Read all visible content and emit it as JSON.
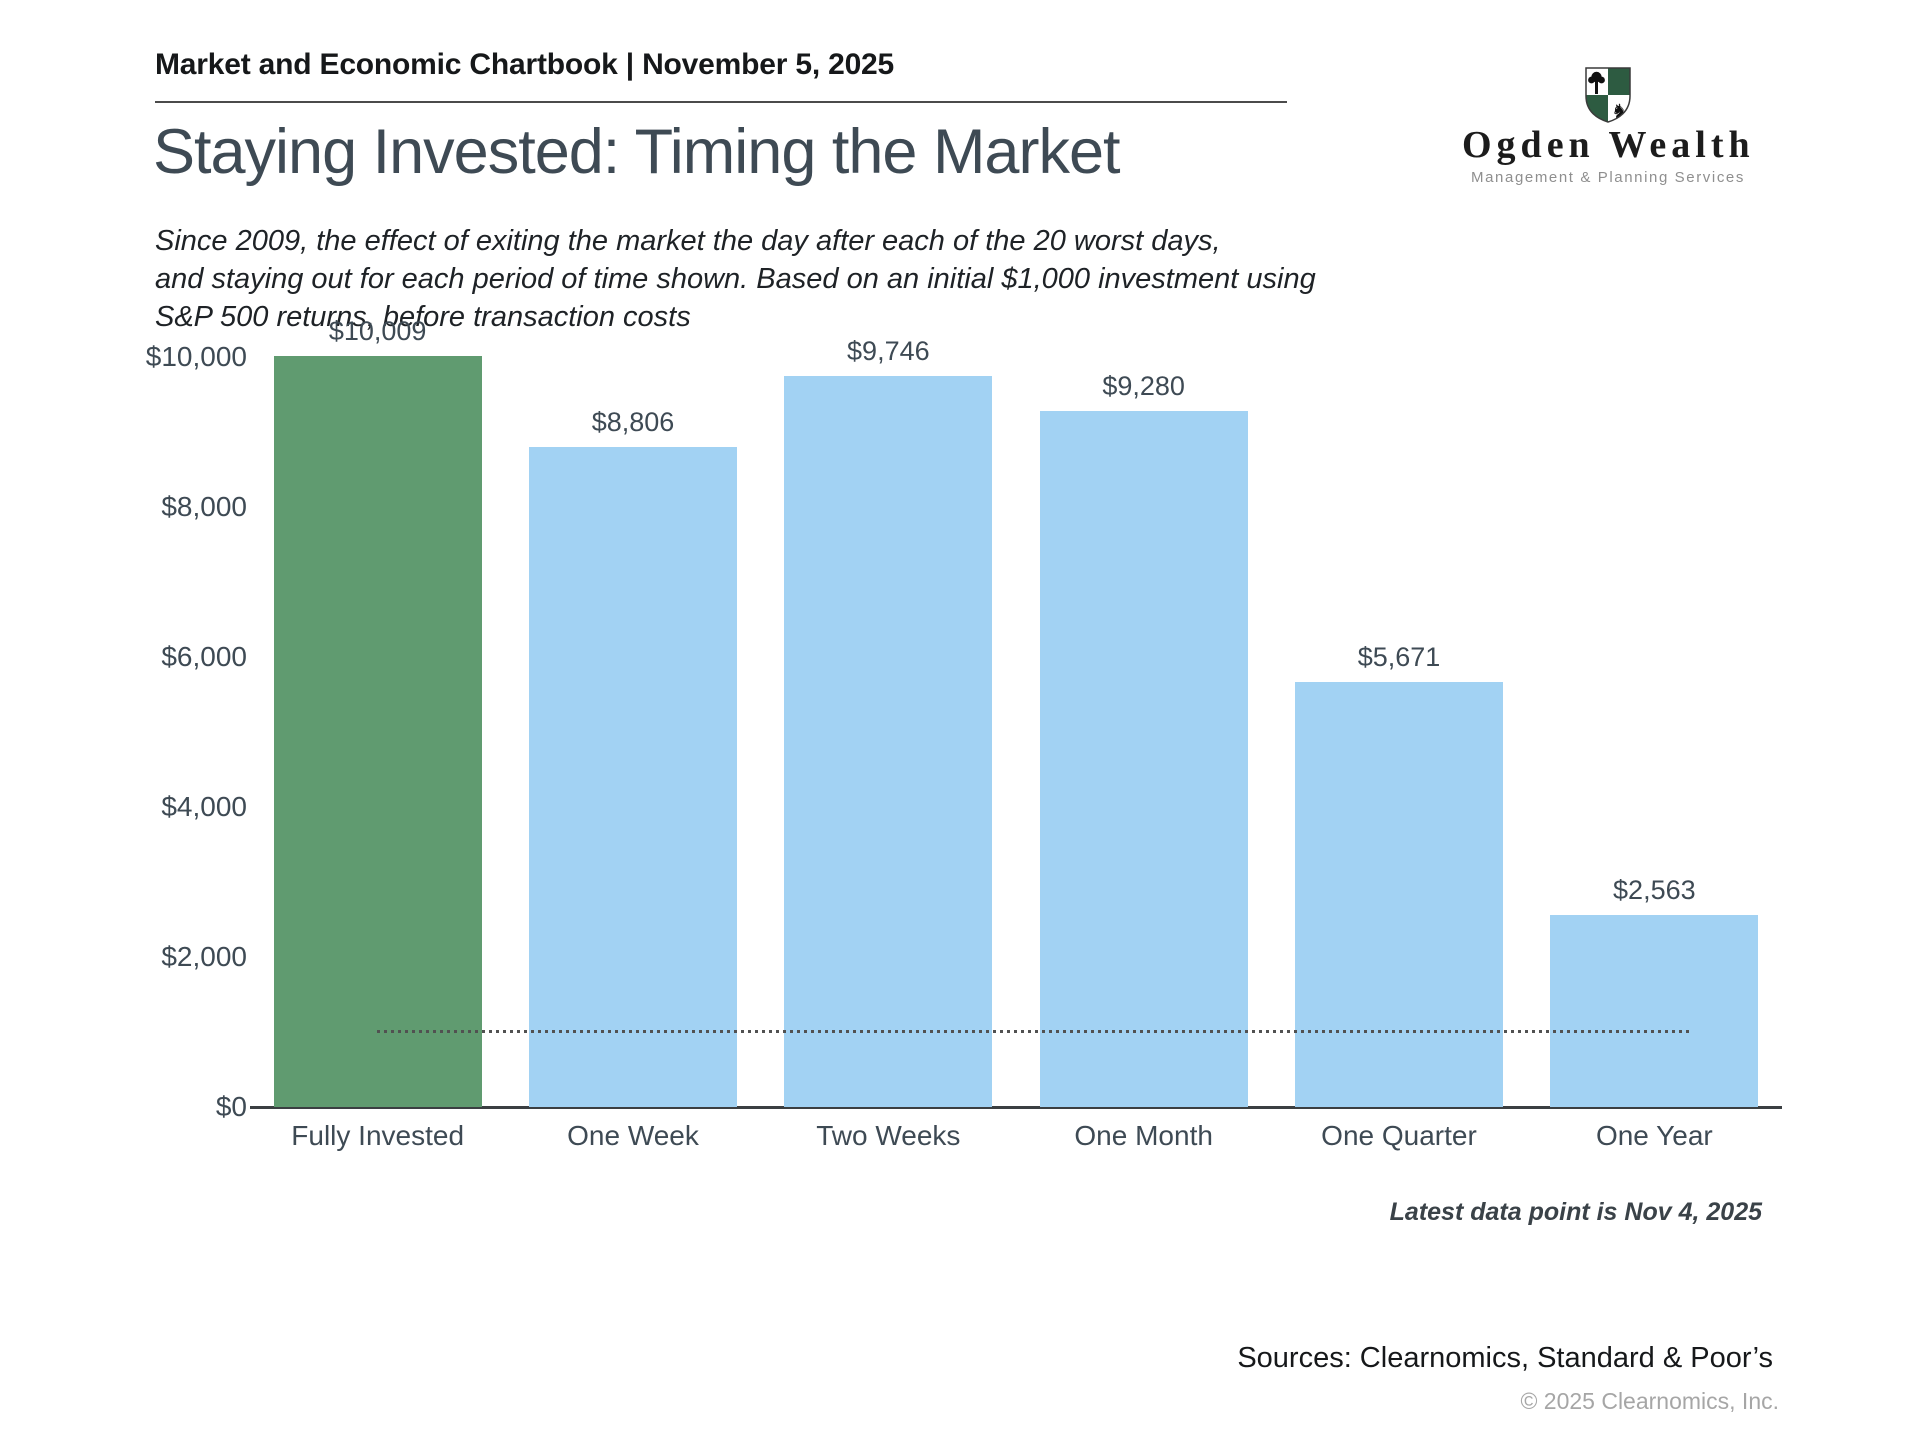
{
  "header": {
    "title": "Market and Economic Chartbook | November 5, 2025"
  },
  "logo": {
    "name": "Ogden Wealth",
    "tagline": "Management & Planning Services",
    "shield_green": "#2d5b41"
  },
  "page": {
    "title": "Staying Invested: Timing the Market",
    "subtitle_lines": [
      "Since 2009, the effect of exiting the market the day after each of the 20 worst days,",
      "and staying out for each period of time shown. Based on an initial $1,000 investment using",
      "S&P 500 returns, before transaction costs"
    ]
  },
  "chart_data": {
    "type": "bar",
    "categories": [
      "Fully Invested",
      "One Week",
      "Two Weeks",
      "One Month",
      "One Quarter",
      "One Year"
    ],
    "values": [
      10009,
      8806,
      9746,
      9280,
      5671,
      2563
    ],
    "value_labels": [
      "$10,009",
      "$8,806",
      "$9,746",
      "$9,280",
      "$5,671",
      "$2,563"
    ],
    "bar_colors": [
      "#609b70",
      "#a2d2f3",
      "#a2d2f3",
      "#a2d2f3",
      "#a2d2f3",
      "#a2d2f3"
    ],
    "highlight_color": "#609b70",
    "series_color": "#a2d2f3",
    "title": "",
    "xlabel": "",
    "ylabel": "",
    "ylim": [
      0,
      10000
    ],
    "yticks": [
      {
        "label": "$10,000",
        "value": 10000
      },
      {
        "label": "$8,000",
        "value": 8000
      },
      {
        "label": "$6,000",
        "value": 6000
      },
      {
        "label": "$4,000",
        "value": 4000
      },
      {
        "label": "$2,000",
        "value": 2000
      },
      {
        "label": "$0",
        "value": 0
      }
    ],
    "reference_line": {
      "value": 1000,
      "style": "dotted",
      "meaning": "initial $1,000 investment"
    },
    "grid": false,
    "legend": "none"
  },
  "footnotes": {
    "latest": "Latest data point is Nov 4, 2025",
    "sources": "Sources: Clearnomics, Standard & Poor’s",
    "copyright": "© 2025 Clearnomics, Inc."
  }
}
